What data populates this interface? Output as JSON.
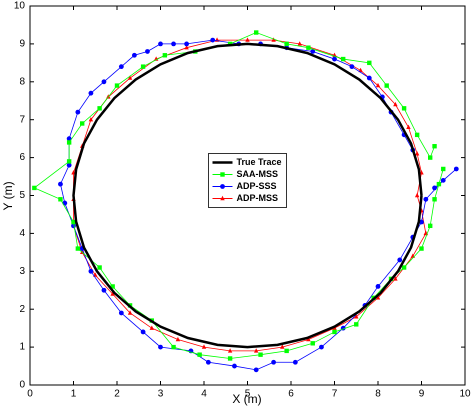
{
  "chart_data": {
    "type": "line",
    "xlabel": "X (m)",
    "ylabel": "Y (m)",
    "xlim": [
      0,
      10
    ],
    "ylim": [
      0,
      10
    ],
    "xticks": [
      0,
      1,
      2,
      3,
      4,
      5,
      6,
      7,
      8,
      9,
      10
    ],
    "yticks": [
      0,
      1,
      2,
      3,
      4,
      5,
      6,
      7,
      8,
      9,
      10
    ],
    "legend": "center",
    "series": [
      {
        "name": "True Trace",
        "color": "#000000",
        "marker": "none",
        "x": [
          9,
          8.94,
          8.76,
          8.46,
          8.06,
          7.57,
          7,
          6.37,
          5.69,
          5,
          4.31,
          3.63,
          3,
          2.43,
          1.94,
          1.54,
          1.24,
          1.06,
          1,
          1.06,
          1.24,
          1.54,
          1.94,
          2.43,
          3,
          3.63,
          4.31,
          5,
          5.69,
          6.37,
          7,
          7.57,
          8.06,
          8.46,
          8.76,
          8.94,
          9
        ],
        "y": [
          5,
          5.69,
          6.37,
          7,
          7.57,
          8.06,
          8.46,
          8.76,
          8.94,
          9,
          8.94,
          8.76,
          8.46,
          8.06,
          7.57,
          7,
          6.37,
          5.69,
          5,
          4.31,
          3.63,
          3,
          2.43,
          1.94,
          1.54,
          1.24,
          1.06,
          1,
          1.06,
          1.24,
          1.54,
          1.94,
          2.43,
          3,
          3.63,
          4.31,
          5
        ]
      },
      {
        "name": "SAA-MSS",
        "color": "#00ff00",
        "marker": "square",
        "x": [
          9.3,
          9.2,
          8.9,
          8.6,
          8.2,
          7.8,
          7.2,
          6.4,
          5.9,
          5.2,
          4.6,
          3.8,
          3.1,
          2.6,
          2.0,
          1.6,
          1.2,
          0.9,
          0.9,
          0.1,
          0.7,
          1.0,
          1.1,
          1.6,
          1.9,
          2.3,
          2.8,
          3.3,
          3.9,
          4.6,
          5.3,
          5.9,
          6.5,
          7.0,
          7.5,
          7.9,
          8.3,
          8.6,
          9.0,
          9.2,
          9.3,
          9.4,
          9.5
        ],
        "y": [
          6.3,
          6.0,
          6.6,
          7.3,
          7.9,
          8.5,
          8.6,
          8.9,
          9.0,
          9.3,
          9.0,
          8.8,
          8.7,
          8.4,
          7.9,
          7.3,
          6.9,
          6.4,
          5.9,
          5.2,
          4.9,
          4.3,
          3.6,
          3.1,
          2.6,
          2.1,
          1.7,
          1.0,
          0.8,
          0.7,
          0.8,
          0.9,
          1.1,
          1.4,
          1.6,
          2.3,
          2.8,
          3.1,
          3.6,
          4.2,
          4.9,
          5.3,
          5.7
        ]
      },
      {
        "name": "ADP-SSS",
        "color": "#0000ff",
        "marker": "circle",
        "x": [
          9.3,
          9.8,
          9.5,
          9.1,
          9.0,
          8.8,
          8.5,
          8.0,
          7.7,
          7.2,
          6.7,
          6.1,
          5.6,
          5.2,
          4.7,
          4.1,
          3.7,
          3.0,
          2.6,
          2.1,
          1.7,
          1.4,
          1.2,
          1.0,
          0.8,
          0.7,
          0.9,
          0.9,
          1.1,
          1.4,
          1.7,
          2.1,
          2.4,
          2.7,
          3.0,
          3.3,
          3.6,
          4.2,
          4.8,
          5.3,
          5.9,
          6.5,
          7.0,
          7.4,
          7.8,
          8.1,
          8.3,
          8.6,
          8.8
        ],
        "y": [
          5.2,
          5.7,
          5.4,
          4.9,
          4.3,
          3.9,
          3.3,
          2.6,
          2.1,
          1.5,
          1.0,
          0.6,
          0.6,
          0.4,
          0.5,
          0.6,
          0.9,
          1.0,
          1.4,
          1.9,
          2.5,
          3.0,
          3.6,
          4.2,
          4.8,
          5.3,
          5.8,
          6.5,
          7.2,
          7.7,
          8.0,
          8.4,
          8.7,
          8.8,
          9.0,
          9.0,
          9.0,
          9.1,
          9.0,
          9.0,
          8.9,
          8.8,
          8.6,
          8.4,
          8.1,
          7.6,
          7.2,
          6.6,
          6.2
        ]
      },
      {
        "name": "ADP-MSS",
        "color": "#ff0000",
        "marker": "triangle",
        "x": [
          9.1,
          9.0,
          8.9,
          9.0,
          8.9,
          8.7,
          8.4,
          8.0,
          7.6,
          7.0,
          6.2,
          5.6,
          5.0,
          4.3,
          3.6,
          2.9,
          2.3,
          1.8,
          1.4,
          1.2,
          1.0,
          1.0,
          1.0,
          1.2,
          1.5,
          1.9,
          2.3,
          2.8,
          3.4,
          4.0,
          4.6,
          5.2,
          5.8,
          6.4,
          7.0,
          7.5,
          8.0,
          8.4,
          8.8,
          9.1
        ],
        "y": [
          4.0,
          4.6,
          5.0,
          5.6,
          6.1,
          6.8,
          7.4,
          7.9,
          8.3,
          8.7,
          9.0,
          9.1,
          9.1,
          9.1,
          8.9,
          8.6,
          8.1,
          7.6,
          7.0,
          6.3,
          5.6,
          4.9,
          4.2,
          3.5,
          2.9,
          2.4,
          1.9,
          1.5,
          1.2,
          1.0,
          0.9,
          0.9,
          1.0,
          1.2,
          1.5,
          1.8,
          2.3,
          2.8,
          3.4,
          4.0
        ]
      }
    ]
  }
}
